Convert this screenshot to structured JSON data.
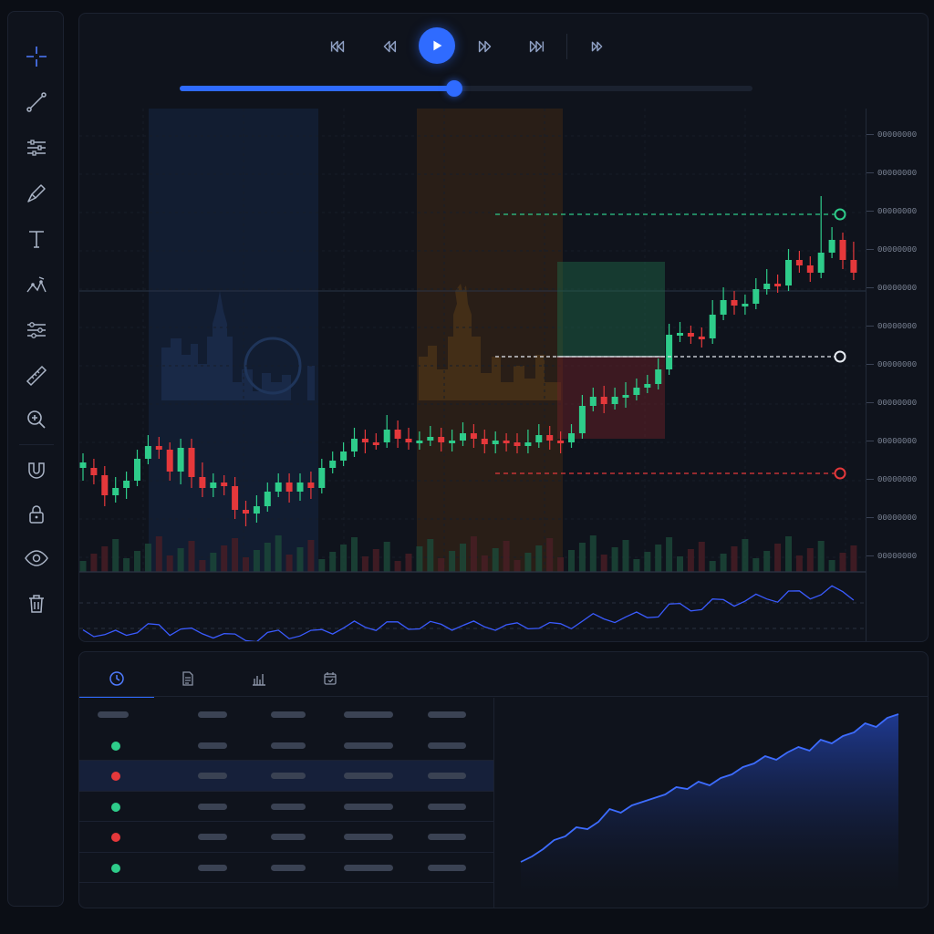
{
  "toolbar": {
    "tools": [
      "crosshair-icon",
      "trend-line-icon",
      "adjustments-icon",
      "brush-icon",
      "text-icon",
      "pattern-icon",
      "indicator-settings-icon",
      "ruler-icon",
      "zoom-in-icon",
      "magnet-icon",
      "lock-icon",
      "eye-icon",
      "trash-icon"
    ]
  },
  "playback": {
    "buttons": [
      "skip-to-start-icon",
      "step-back-icon",
      "play-icon",
      "step-forward-icon",
      "skip-to-end-icon",
      "fast-forward-icon"
    ],
    "progress": 0.48,
    "accent": "#2f6bff"
  },
  "price_axis": {
    "labels": [
      "00000000",
      "00000000",
      "00000000",
      "00000000",
      "00000000",
      "00000000",
      "00000000",
      "00000000",
      "00000000",
      "00000000",
      "00000000",
      "00000000"
    ]
  },
  "position": {
    "take_profit_color": "#2ecc8a",
    "entry_color": "#e8ecf3",
    "stop_loss_color": "#e5383b"
  },
  "colors": {
    "bull": "#2ecc8a",
    "bear": "#e5383b",
    "london_session": "#152644",
    "newyork_session": "#3a2714",
    "indicator_line": "#3a5bff"
  },
  "tabs": [
    "clock-icon",
    "document-icon",
    "bar-chart-icon",
    "calendar-icon"
  ],
  "trades": {
    "rows": [
      {
        "side": "long",
        "color": "#2ecc8a"
      },
      {
        "side": "short",
        "color": "#e5383b"
      },
      {
        "side": "long",
        "color": "#2ecc8a"
      },
      {
        "side": "short",
        "color": "#e5383b"
      },
      {
        "side": "long",
        "color": "#2ecc8a"
      }
    ]
  },
  "chart_data": {
    "type": "candlestick",
    "ohlc": [
      [
        498,
        492,
        506,
        488
      ],
      [
        498,
        506,
        510,
        494
      ],
      [
        506,
        528,
        534,
        502
      ],
      [
        528,
        520,
        530,
        514
      ],
      [
        520,
        512,
        526,
        508
      ],
      [
        512,
        488,
        492,
        484
      ],
      [
        488,
        474,
        478,
        468
      ],
      [
        474,
        478,
        482,
        470
      ],
      [
        478,
        502,
        506,
        476
      ],
      [
        502,
        476,
        510,
        472
      ],
      [
        476,
        508,
        514,
        472
      ],
      [
        508,
        520,
        524,
        498
      ],
      [
        520,
        514,
        524,
        510
      ],
      [
        514,
        518,
        522,
        512
      ],
      [
        518,
        544,
        548,
        514
      ],
      [
        544,
        548,
        556,
        540
      ],
      [
        548,
        540,
        552,
        534
      ],
      [
        540,
        524,
        530,
        520
      ],
      [
        524,
        514,
        520,
        510
      ],
      [
        514,
        524,
        530,
        510
      ],
      [
        524,
        514,
        528,
        510
      ],
      [
        514,
        520,
        526,
        508
      ],
      [
        520,
        498,
        502,
        494
      ],
      [
        498,
        490,
        496,
        486
      ],
      [
        490,
        480,
        484,
        476
      ],
      [
        480,
        466,
        470,
        460
      ],
      [
        466,
        470,
        476,
        462
      ],
      [
        470,
        470,
        472,
        466
      ],
      [
        470,
        456,
        460,
        446
      ],
      [
        456,
        466,
        470,
        452
      ],
      [
        466,
        470,
        472,
        460
      ],
      [
        470,
        468,
        472,
        464
      ],
      [
        468,
        464,
        468,
        458
      ],
      [
        464,
        470,
        474,
        460
      ],
      [
        470,
        468,
        474,
        462
      ],
      [
        468,
        460,
        464,
        454
      ],
      [
        460,
        466,
        470,
        456
      ],
      [
        466,
        472,
        476,
        462
      ],
      [
        472,
        468,
        476,
        464
      ],
      [
        468,
        470,
        474,
        466
      ],
      [
        470,
        474,
        476,
        466
      ],
      [
        474,
        470,
        476,
        462
      ],
      [
        470,
        462,
        468,
        456
      ],
      [
        462,
        468,
        472,
        458
      ],
      [
        468,
        470,
        476,
        464
      ],
      [
        470,
        460,
        466,
        456
      ],
      [
        460,
        430,
        436,
        424
      ],
      [
        430,
        420,
        426,
        416
      ],
      [
        420,
        428,
        432,
        414
      ],
      [
        428,
        420,
        426,
        416
      ],
      [
        420,
        418,
        426,
        410
      ],
      [
        418,
        410,
        414,
        406
      ],
      [
        410,
        406,
        410,
        402
      ],
      [
        406,
        390,
        394,
        384
      ],
      [
        390,
        352,
        356,
        346
      ],
      [
        352,
        350,
        354,
        344
      ],
      [
        350,
        354,
        356,
        348
      ],
      [
        354,
        356,
        360,
        350
      ],
      [
        356,
        330,
        334,
        320
      ],
      [
        330,
        314,
        320,
        306
      ],
      [
        314,
        320,
        324,
        310
      ],
      [
        320,
        318,
        324,
        314
      ],
      [
        318,
        302,
        306,
        296
      ],
      [
        302,
        296,
        298,
        286
      ],
      [
        296,
        298,
        300,
        292
      ],
      [
        298,
        270,
        276,
        264
      ],
      [
        270,
        276,
        278,
        266
      ],
      [
        276,
        284,
        288,
        272
      ],
      [
        284,
        262,
        268,
        206
      ],
      [
        262,
        248,
        252,
        240
      ],
      [
        248,
        270,
        274,
        246
      ],
      [
        270,
        284,
        286,
        256
      ]
    ]
  }
}
